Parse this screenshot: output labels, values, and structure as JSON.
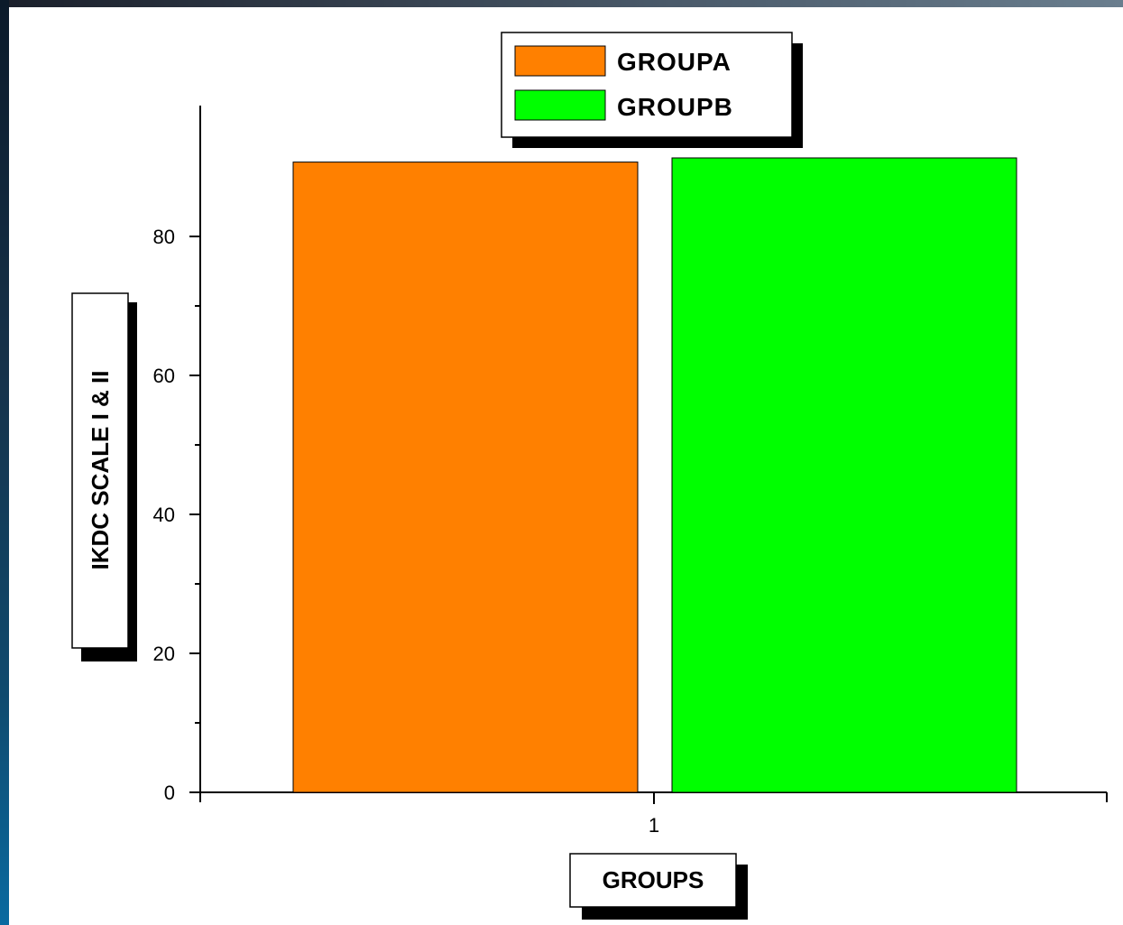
{
  "chart_data": {
    "type": "bar",
    "categories": [
      "1"
    ],
    "series": [
      {
        "name": "GROUPA",
        "values": [
          90.7
        ],
        "color": "#ff8000"
      },
      {
        "name": "GROUPB",
        "values": [
          91.3
        ],
        "color": "#00ff00"
      }
    ],
    "xlabel": "GROUPS",
    "ylabel": "IKDC SCALE I & II",
    "ylim": [
      0,
      100
    ],
    "y_ticks": [
      0,
      20,
      40,
      60,
      80
    ],
    "grid": false,
    "legend_position": "top-center"
  }
}
